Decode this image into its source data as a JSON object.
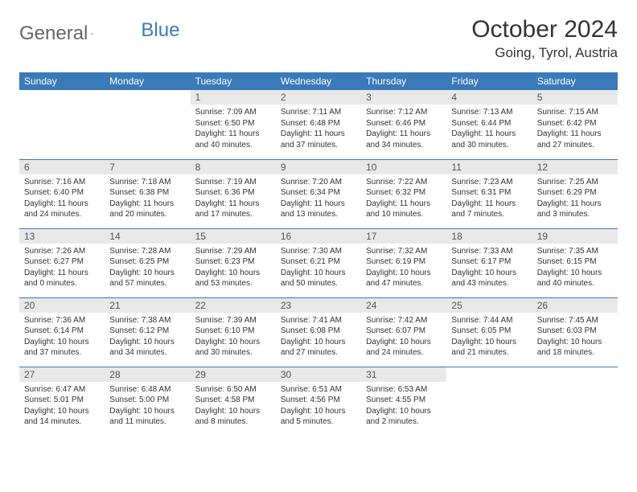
{
  "logo": {
    "text1": "General",
    "text2": "Blue"
  },
  "title": "October 2024",
  "location": "Going, Tyrol, Austria",
  "headerBg": "#3a7ab8",
  "dayNumBg": "#e8e8e8",
  "weekdays": [
    "Sunday",
    "Monday",
    "Tuesday",
    "Wednesday",
    "Thursday",
    "Friday",
    "Saturday"
  ],
  "weeks": [
    [
      null,
      null,
      {
        "n": "1",
        "sr": "7:09 AM",
        "ss": "6:50 PM",
        "dl": "11 hours and 40 minutes."
      },
      {
        "n": "2",
        "sr": "7:11 AM",
        "ss": "6:48 PM",
        "dl": "11 hours and 37 minutes."
      },
      {
        "n": "3",
        "sr": "7:12 AM",
        "ss": "6:46 PM",
        "dl": "11 hours and 34 minutes."
      },
      {
        "n": "4",
        "sr": "7:13 AM",
        "ss": "6:44 PM",
        "dl": "11 hours and 30 minutes."
      },
      {
        "n": "5",
        "sr": "7:15 AM",
        "ss": "6:42 PM",
        "dl": "11 hours and 27 minutes."
      }
    ],
    [
      {
        "n": "6",
        "sr": "7:16 AM",
        "ss": "6:40 PM",
        "dl": "11 hours and 24 minutes."
      },
      {
        "n": "7",
        "sr": "7:18 AM",
        "ss": "6:38 PM",
        "dl": "11 hours and 20 minutes."
      },
      {
        "n": "8",
        "sr": "7:19 AM",
        "ss": "6:36 PM",
        "dl": "11 hours and 17 minutes."
      },
      {
        "n": "9",
        "sr": "7:20 AM",
        "ss": "6:34 PM",
        "dl": "11 hours and 13 minutes."
      },
      {
        "n": "10",
        "sr": "7:22 AM",
        "ss": "6:32 PM",
        "dl": "11 hours and 10 minutes."
      },
      {
        "n": "11",
        "sr": "7:23 AM",
        "ss": "6:31 PM",
        "dl": "11 hours and 7 minutes."
      },
      {
        "n": "12",
        "sr": "7:25 AM",
        "ss": "6:29 PM",
        "dl": "11 hours and 3 minutes."
      }
    ],
    [
      {
        "n": "13",
        "sr": "7:26 AM",
        "ss": "6:27 PM",
        "dl": "11 hours and 0 minutes."
      },
      {
        "n": "14",
        "sr": "7:28 AM",
        "ss": "6:25 PM",
        "dl": "10 hours and 57 minutes."
      },
      {
        "n": "15",
        "sr": "7:29 AM",
        "ss": "6:23 PM",
        "dl": "10 hours and 53 minutes."
      },
      {
        "n": "16",
        "sr": "7:30 AM",
        "ss": "6:21 PM",
        "dl": "10 hours and 50 minutes."
      },
      {
        "n": "17",
        "sr": "7:32 AM",
        "ss": "6:19 PM",
        "dl": "10 hours and 47 minutes."
      },
      {
        "n": "18",
        "sr": "7:33 AM",
        "ss": "6:17 PM",
        "dl": "10 hours and 43 minutes."
      },
      {
        "n": "19",
        "sr": "7:35 AM",
        "ss": "6:15 PM",
        "dl": "10 hours and 40 minutes."
      }
    ],
    [
      {
        "n": "20",
        "sr": "7:36 AM",
        "ss": "6:14 PM",
        "dl": "10 hours and 37 minutes."
      },
      {
        "n": "21",
        "sr": "7:38 AM",
        "ss": "6:12 PM",
        "dl": "10 hours and 34 minutes."
      },
      {
        "n": "22",
        "sr": "7:39 AM",
        "ss": "6:10 PM",
        "dl": "10 hours and 30 minutes."
      },
      {
        "n": "23",
        "sr": "7:41 AM",
        "ss": "6:08 PM",
        "dl": "10 hours and 27 minutes."
      },
      {
        "n": "24",
        "sr": "7:42 AM",
        "ss": "6:07 PM",
        "dl": "10 hours and 24 minutes."
      },
      {
        "n": "25",
        "sr": "7:44 AM",
        "ss": "6:05 PM",
        "dl": "10 hours and 21 minutes."
      },
      {
        "n": "26",
        "sr": "7:45 AM",
        "ss": "6:03 PM",
        "dl": "10 hours and 18 minutes."
      }
    ],
    [
      {
        "n": "27",
        "sr": "6:47 AM",
        "ss": "5:01 PM",
        "dl": "10 hours and 14 minutes."
      },
      {
        "n": "28",
        "sr": "6:48 AM",
        "ss": "5:00 PM",
        "dl": "10 hours and 11 minutes."
      },
      {
        "n": "29",
        "sr": "6:50 AM",
        "ss": "4:58 PM",
        "dl": "10 hours and 8 minutes."
      },
      {
        "n": "30",
        "sr": "6:51 AM",
        "ss": "4:56 PM",
        "dl": "10 hours and 5 minutes."
      },
      {
        "n": "31",
        "sr": "6:53 AM",
        "ss": "4:55 PM",
        "dl": "10 hours and 2 minutes."
      },
      null,
      null
    ]
  ],
  "labels": {
    "sunrise": "Sunrise: ",
    "sunset": "Sunset: ",
    "daylight": "Daylight: "
  }
}
